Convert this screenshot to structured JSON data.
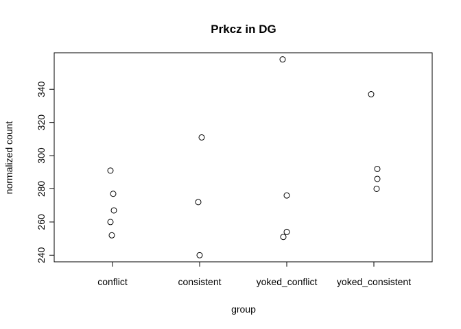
{
  "chart_data": {
    "type": "scatter",
    "title": "Prkcz in DG",
    "xlabel": "group",
    "ylabel": "normalized count",
    "categories": [
      "conflict",
      "consistent",
      "yoked_conflict",
      "yoked_consistent"
    ],
    "points": [
      {
        "category": "conflict",
        "y": 291
      },
      {
        "category": "conflict",
        "y": 277
      },
      {
        "category": "conflict",
        "y": 267
      },
      {
        "category": "conflict",
        "y": 260
      },
      {
        "category": "conflict",
        "y": 252
      },
      {
        "category": "consistent",
        "y": 311
      },
      {
        "category": "consistent",
        "y": 272
      },
      {
        "category": "consistent",
        "y": 240
      },
      {
        "category": "yoked_conflict",
        "y": 358
      },
      {
        "category": "yoked_conflict",
        "y": 276
      },
      {
        "category": "yoked_conflict",
        "y": 254
      },
      {
        "category": "yoked_conflict",
        "y": 251
      },
      {
        "category": "yoked_consistent",
        "y": 337
      },
      {
        "category": "yoked_consistent",
        "y": 292
      },
      {
        "category": "yoked_consistent",
        "y": 286
      },
      {
        "category": "yoked_consistent",
        "y": 280
      }
    ],
    "yticks": [
      240,
      260,
      280,
      300,
      320,
      340
    ],
    "ylim": [
      236,
      362
    ],
    "grid": false,
    "legend": "none"
  }
}
